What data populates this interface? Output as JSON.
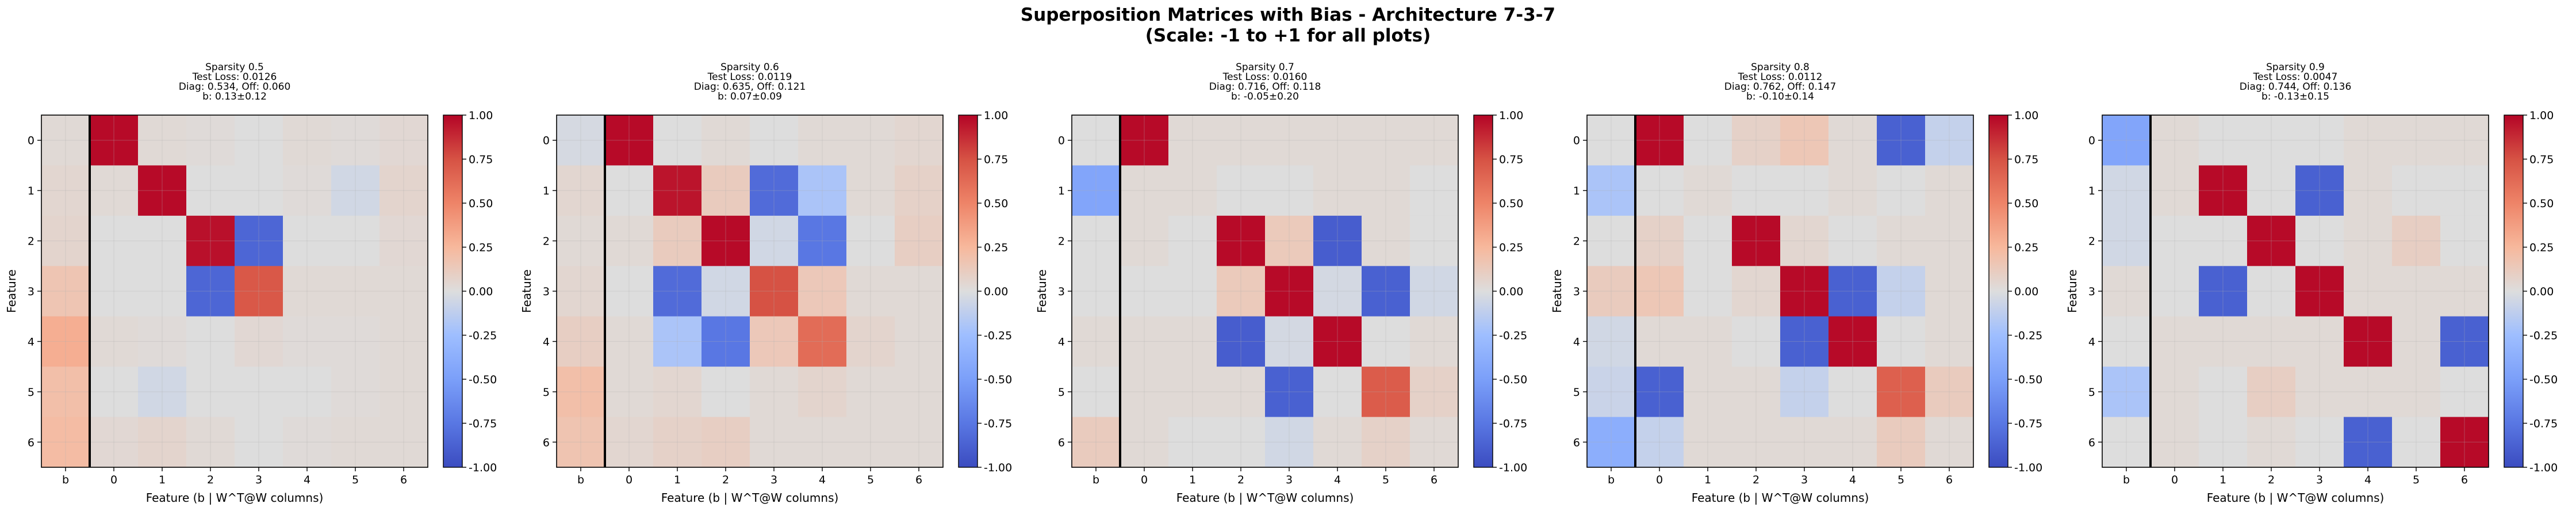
{
  "figure": {
    "title_line1": "Superposition Matrices with Bias - Architecture 7-3-7",
    "title_line2": "(Scale: -1 to +1 for all plots)"
  },
  "colormap": {
    "name": "coolwarm",
    "vmin": -1,
    "vmax": 1,
    "stops": [
      [
        0.0,
        "#3b4cc0"
      ],
      [
        0.125,
        "#5977e3"
      ],
      [
        0.25,
        "#7b9ff9"
      ],
      [
        0.375,
        "#9ebeff"
      ],
      [
        0.5,
        "#dddddd"
      ],
      [
        0.625,
        "#f7b89c"
      ],
      [
        0.75,
        "#ee8468"
      ],
      [
        0.875,
        "#d65244"
      ],
      [
        1.0,
        "#b40426"
      ]
    ],
    "ticks": [
      "1.00",
      "0.75",
      "0.50",
      "0.25",
      "0.00",
      "-0.25",
      "-0.50",
      "-0.75",
      "-1.00"
    ]
  },
  "chart_data": [
    {
      "type": "heatmap",
      "title": [
        "Sparsity 0.5",
        "Test Loss: 0.0126",
        "Diag: 0.534, Off: 0.060",
        "b: 0.13±0.12"
      ],
      "xlabel": "Feature (b | W^T@W columns)",
      "ylabel": "Feature",
      "xticks": [
        "b",
        "0",
        "1",
        "2",
        "3",
        "4",
        "5",
        "6"
      ],
      "yticks": [
        "0",
        "1",
        "2",
        "3",
        "4",
        "5",
        "6"
      ],
      "grid": true,
      "values": [
        [
          0.03,
          0.98,
          0.03,
          0.02,
          0.0,
          0.03,
          0.02,
          0.04
        ],
        [
          0.05,
          0.03,
          0.98,
          0.0,
          0.0,
          0.02,
          -0.05,
          0.06
        ],
        [
          0.06,
          0.0,
          0.0,
          0.96,
          -0.85,
          0.0,
          0.0,
          0.04
        ],
        [
          0.16,
          0.0,
          0.0,
          -0.85,
          0.72,
          0.03,
          0.03,
          0.03
        ],
        [
          0.3,
          0.03,
          0.02,
          0.0,
          0.04,
          0.02,
          0.02,
          0.03
        ],
        [
          0.2,
          0.0,
          -0.05,
          0.0,
          0.0,
          0.0,
          0.02,
          0.03
        ],
        [
          0.22,
          0.04,
          0.06,
          0.03,
          0.0,
          0.02,
          0.03,
          0.03
        ]
      ]
    },
    {
      "type": "heatmap",
      "title": [
        "Sparsity 0.6",
        "Test Loss: 0.0119",
        "Diag: 0.635, Off: 0.121",
        "b: 0.07±0.09"
      ],
      "xlabel": "Feature (b | W^T@W columns)",
      "ylabel": "Feature",
      "xticks": [
        "b",
        "0",
        "1",
        "2",
        "3",
        "4",
        "5",
        "6"
      ],
      "yticks": [
        "0",
        "1",
        "2",
        "3",
        "4",
        "5",
        "6"
      ],
      "grid": true,
      "values": [
        [
          -0.03,
          0.98,
          0.0,
          0.03,
          0.0,
          0.03,
          0.03,
          0.05
        ],
        [
          0.05,
          0.0,
          0.95,
          0.12,
          -0.82,
          -0.2,
          0.03,
          0.08
        ],
        [
          0.03,
          0.03,
          0.12,
          0.98,
          -0.05,
          -0.75,
          0.0,
          0.1
        ],
        [
          0.05,
          0.0,
          -0.82,
          -0.05,
          0.75,
          0.14,
          0.03,
          0.03
        ],
        [
          0.1,
          0.03,
          -0.2,
          -0.75,
          0.14,
          0.62,
          0.06,
          0.03
        ],
        [
          0.2,
          0.03,
          0.05,
          0.0,
          0.03,
          0.06,
          0.03,
          0.03
        ],
        [
          0.17,
          0.05,
          0.08,
          0.1,
          0.03,
          0.03,
          0.03,
          0.03
        ]
      ]
    },
    {
      "type": "heatmap",
      "title": [
        "Sparsity 0.7",
        "Test Loss: 0.0160",
        "Diag: 0.716, Off: 0.118",
        "b: -0.05±0.20"
      ],
      "xlabel": "Feature (b | W^T@W columns)",
      "ylabel": "Feature",
      "xticks": [
        "b",
        "0",
        "1",
        "2",
        "3",
        "4",
        "5",
        "6"
      ],
      "yticks": [
        "0",
        "1",
        "2",
        "3",
        "4",
        "5",
        "6"
      ],
      "grid": true,
      "values": [
        [
          0.0,
          0.98,
          0.03,
          0.03,
          0.03,
          0.03,
          0.03,
          0.03
        ],
        [
          -0.45,
          0.03,
          0.03,
          0.0,
          0.0,
          0.03,
          0.03,
          0.0
        ],
        [
          0.0,
          0.03,
          0.0,
          0.98,
          0.13,
          -0.9,
          0.03,
          0.0
        ],
        [
          0.0,
          0.0,
          0.0,
          0.13,
          0.98,
          -0.04,
          -0.88,
          -0.05
        ],
        [
          0.03,
          0.03,
          0.03,
          -0.9,
          -0.04,
          0.98,
          0.0,
          0.03
        ],
        [
          0.0,
          0.03,
          0.03,
          0.03,
          -0.88,
          0.0,
          0.7,
          0.08
        ],
        [
          0.12,
          0.03,
          0.0,
          0.0,
          -0.05,
          0.03,
          0.08,
          0.03
        ]
      ]
    },
    {
      "type": "heatmap",
      "title": [
        "Sparsity 0.8",
        "Test Loss: 0.0112",
        "Diag: 0.762, Off: 0.147",
        "b: -0.10±0.14"
      ],
      "xlabel": "Feature (b | W^T@W columns)",
      "ylabel": "Feature",
      "xticks": [
        "b",
        "0",
        "1",
        "2",
        "3",
        "4",
        "5",
        "6"
      ],
      "yticks": [
        "0",
        "1",
        "2",
        "3",
        "4",
        "5",
        "6"
      ],
      "grid": true,
      "values": [
        [
          0.0,
          0.98,
          0.0,
          0.08,
          0.15,
          0.03,
          -0.88,
          -0.1
        ],
        [
          -0.2,
          0.0,
          0.03,
          0.0,
          0.0,
          0.03,
          0.0,
          0.03
        ],
        [
          0.0,
          0.08,
          0.0,
          0.98,
          0.05,
          0.0,
          0.03,
          0.03
        ],
        [
          0.12,
          0.15,
          0.0,
          0.05,
          0.98,
          -0.88,
          -0.1,
          0.03
        ],
        [
          -0.05,
          0.03,
          0.03,
          0.0,
          -0.88,
          0.98,
          0.0,
          0.03
        ],
        [
          -0.08,
          -0.88,
          0.03,
          0.03,
          -0.1,
          0.0,
          0.68,
          0.12
        ],
        [
          -0.38,
          -0.1,
          0.03,
          0.03,
          0.03,
          0.03,
          0.12,
          0.03
        ]
      ]
    },
    {
      "type": "heatmap",
      "title": [
        "Sparsity 0.9",
        "Test Loss: 0.0047",
        "Diag: 0.744, Off: 0.136",
        "b: -0.13±0.15"
      ],
      "xlabel": "Feature (b | W^T@W columns)",
      "ylabel": "Feature",
      "xticks": [
        "b",
        "0",
        "1",
        "2",
        "3",
        "4",
        "5",
        "6"
      ],
      "yticks": [
        "0",
        "1",
        "2",
        "3",
        "4",
        "5",
        "6"
      ],
      "grid": true,
      "values": [
        [
          -0.45,
          0.03,
          0.0,
          0.0,
          0.0,
          0.03,
          0.03,
          0.03
        ],
        [
          -0.05,
          0.03,
          0.98,
          0.0,
          -0.88,
          0.03,
          0.0,
          0.0
        ],
        [
          -0.05,
          0.0,
          0.0,
          0.98,
          0.0,
          0.03,
          0.1,
          0.0
        ],
        [
          0.03,
          0.0,
          -0.88,
          0.0,
          0.98,
          0.03,
          0.03,
          0.03
        ],
        [
          0.0,
          0.03,
          0.03,
          0.03,
          0.03,
          0.98,
          0.03,
          -0.88
        ],
        [
          -0.2,
          0.03,
          0.0,
          0.1,
          0.03,
          0.03,
          0.03,
          0.0
        ],
        [
          0.0,
          0.03,
          0.0,
          0.03,
          0.0,
          -0.88,
          0.0,
          0.98
        ]
      ]
    }
  ]
}
